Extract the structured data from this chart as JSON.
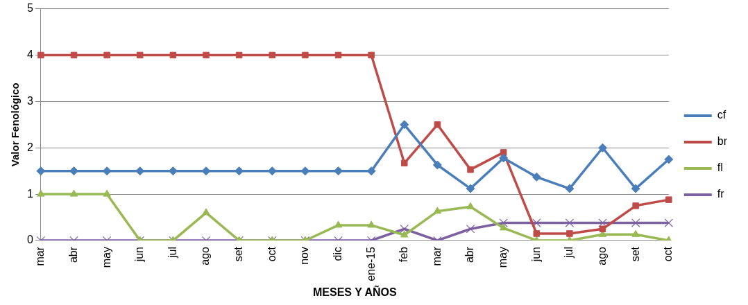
{
  "chart_data": {
    "type": "line",
    "xlabel": "MESES Y AÑOS",
    "ylabel": "Valor Fenológico",
    "categories": [
      "mar",
      "abr",
      "may",
      "jun",
      "jul",
      "ago",
      "set",
      "oct",
      "nov",
      "dic",
      "ene-15",
      "feb",
      "mar",
      "abr",
      "may",
      "jun",
      "jul",
      "ago",
      "set",
      "oct"
    ],
    "series": [
      {
        "name": "cf",
        "color": "#4a7ebb",
        "marker": "diamond",
        "values": [
          1.5,
          1.5,
          1.5,
          1.5,
          1.5,
          1.5,
          1.5,
          1.5,
          1.5,
          1.5,
          1.5,
          2.5,
          1.63,
          1.12,
          1.78,
          1.37,
          1.12,
          2.0,
          1.12,
          1.75
        ]
      },
      {
        "name": "br",
        "color": "#be4b48",
        "marker": "square",
        "values": [
          4,
          4,
          4,
          4,
          4,
          4,
          4,
          4,
          4,
          4,
          4,
          1.67,
          2.5,
          1.53,
          1.9,
          0.15,
          0.15,
          0.25,
          0.75,
          0.88
        ]
      },
      {
        "name": "fl",
        "color": "#98b954",
        "marker": "triangle",
        "values": [
          1,
          1,
          1,
          0,
          0,
          0.6,
          0,
          0,
          0,
          0.33,
          0.33,
          0.12,
          0.63,
          0.73,
          0.27,
          0,
          0,
          0.13,
          0.13,
          0
        ]
      },
      {
        "name": "fr",
        "color": "#7d60a0",
        "marker": "cross",
        "values": [
          0,
          0,
          0,
          0,
          0,
          0,
          0,
          0,
          0,
          0,
          0,
          0.25,
          0,
          0.25,
          0.38,
          0.38,
          0.38,
          0.38,
          0.38,
          0.38
        ]
      }
    ],
    "ylim": [
      0,
      5
    ],
    "yticks": [
      0,
      1,
      2,
      3,
      4,
      5
    ],
    "grid": "y",
    "legend": "right"
  }
}
